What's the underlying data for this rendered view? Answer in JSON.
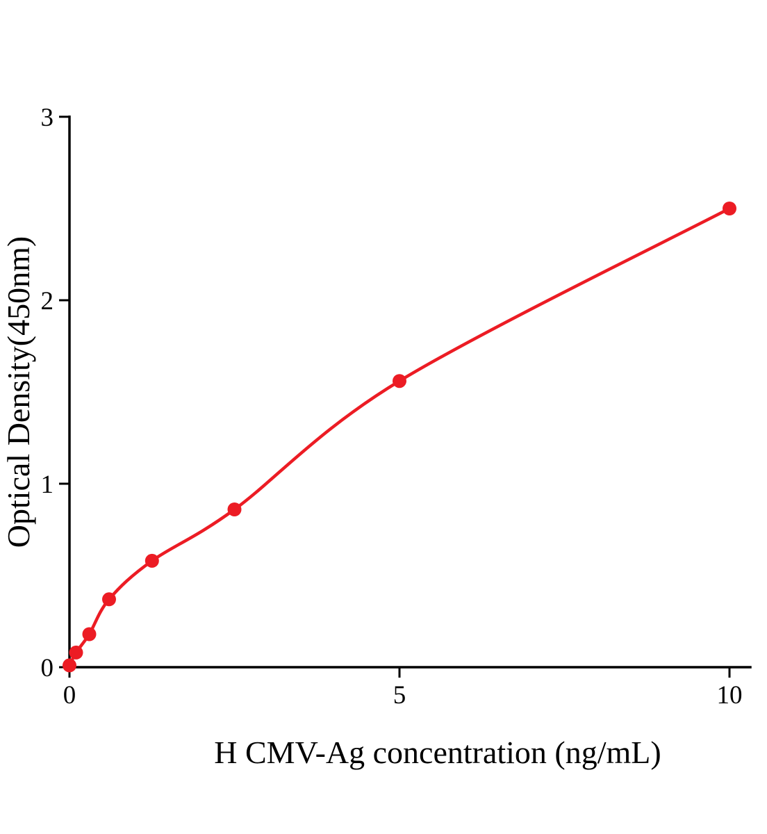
{
  "chart_data": {
    "type": "scatter",
    "title": "",
    "xlabel": "H CMV-Ag concentration (ng/mL)",
    "ylabel": "Optical Density(450nm)",
    "xlim": [
      0,
      10.3
    ],
    "ylim": [
      0,
      3
    ],
    "xticks": [
      0,
      5,
      10
    ],
    "yticks": [
      0,
      1,
      2,
      3
    ],
    "grid": false,
    "legend": false,
    "series": [
      {
        "name": "",
        "marker": "circle",
        "color": "#ec1c24",
        "curve": "smooth-fit",
        "points": [
          [
            0,
            0.01
          ],
          [
            0.1,
            0.08
          ],
          [
            0.3,
            0.18
          ],
          [
            0.6,
            0.37
          ],
          [
            1.25,
            0.58
          ],
          [
            2.5,
            0.86
          ],
          [
            5,
            1.56
          ],
          [
            10,
            2.5
          ]
        ]
      }
    ]
  }
}
